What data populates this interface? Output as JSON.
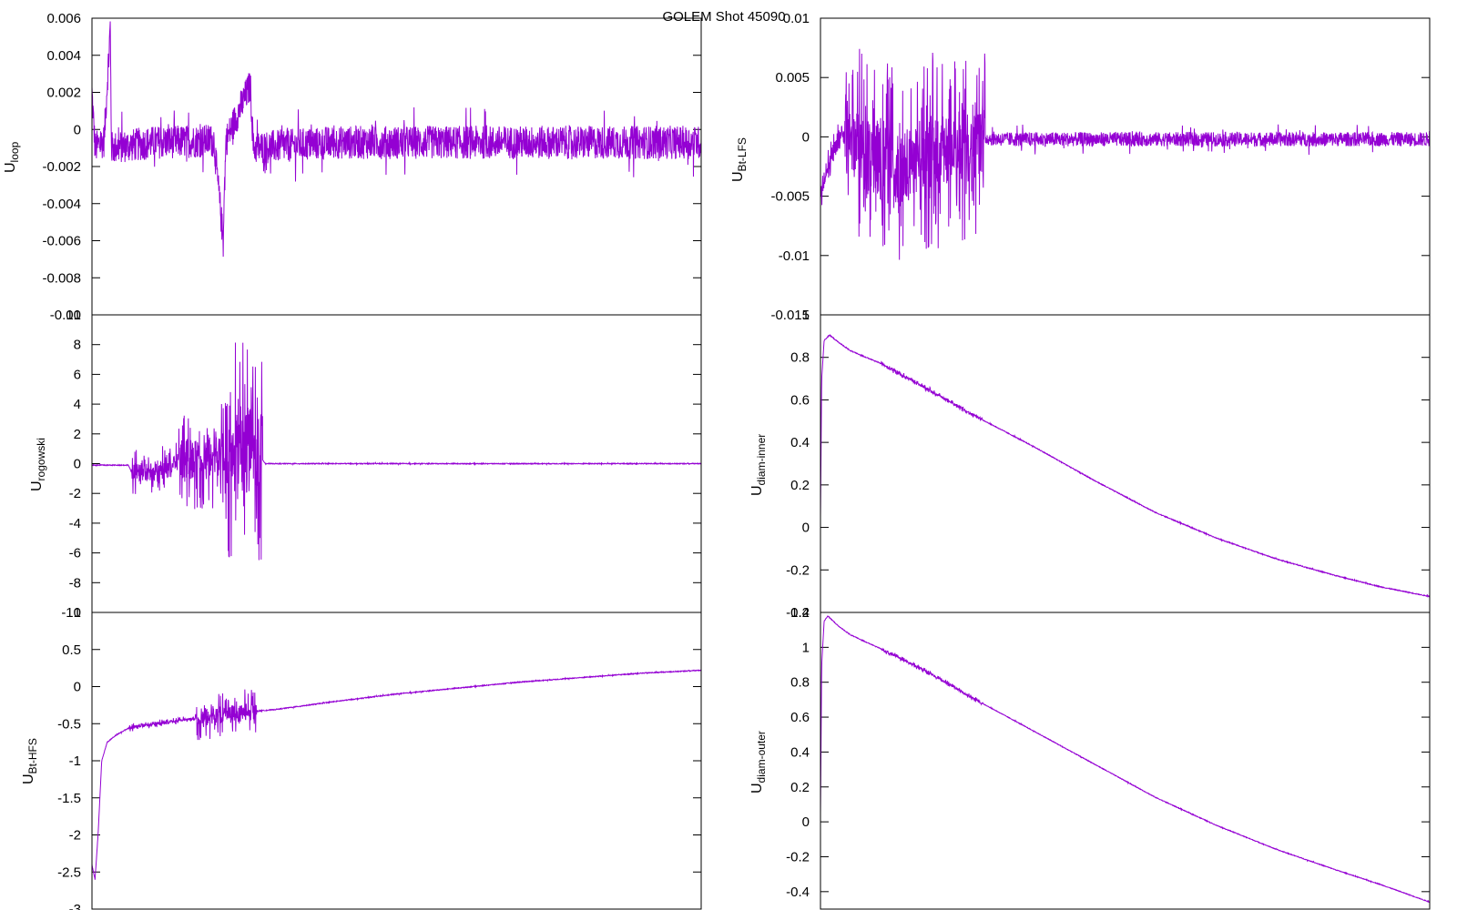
{
  "title": "GOLEM Shot 45090",
  "colors": {
    "trace": "#9400d3",
    "axis": "#000000",
    "background": "#ffffff"
  },
  "chart_data": [
    {
      "type": "line",
      "id": "uloop",
      "ylabel": "U",
      "ylabel_sub": "loop",
      "ylim": [
        -0.01,
        0.006
      ],
      "yticks": [
        0.006,
        0.004,
        0.002,
        0,
        -0.002,
        -0.004,
        -0.006,
        -0.008,
        -0.01
      ],
      "ytick_labels": [
        "0.006",
        "0.004",
        "0.002",
        "0",
        "-0.002",
        "-0.004",
        "-0.006",
        "-0.008",
        "-0.01"
      ],
      "x_range": [
        0,
        1
      ],
      "series": [
        {
          "points": [
            [
              0,
              0.002
            ],
            [
              0.005,
              -0.001
            ],
            [
              0.02,
              -0.0006
            ],
            [
              0.03,
              0.0055
            ],
            [
              0.032,
              -0.001
            ],
            [
              0.1,
              -0.0007
            ],
            [
              0.2,
              -0.0006
            ],
            [
              0.215,
              -0.0058
            ],
            [
              0.22,
              -0.0006
            ],
            [
              0.26,
              0.0024
            ],
            [
              0.265,
              -0.001
            ],
            [
              0.4,
              -0.0007
            ],
            [
              0.6,
              -0.0007
            ],
            [
              0.8,
              -0.0007
            ],
            [
              1.0,
              -0.0007
            ]
          ],
          "noise": 0.0009
        }
      ]
    },
    {
      "type": "line",
      "id": "ubt-lfs",
      "ylabel": "U",
      "ylabel_sub": "Bt-LFS",
      "ylim": [
        -0.015,
        0.01
      ],
      "yticks": [
        0.01,
        0.005,
        0,
        -0.005,
        -0.01,
        -0.015
      ],
      "ytick_labels": [
        "0.01",
        "0.005",
        "0",
        "-0.005",
        "-0.01",
        "-0.015"
      ],
      "x_range": [
        0,
        1
      ],
      "series": [
        {
          "points": [
            [
              0,
              -0.0045
            ],
            [
              0.02,
              -0.0015
            ],
            [
              0.035,
              0.0005
            ],
            [
              0.05,
              0.0001
            ],
            [
              0.07,
              -0.001
            ],
            [
              0.1,
              -0.002
            ],
            [
              0.13,
              -0.0025
            ],
            [
              0.16,
              -0.002
            ],
            [
              0.18,
              -0.0015
            ],
            [
              0.27,
              -0.0001
            ],
            [
              0.3,
              -0.0002
            ],
            [
              0.5,
              -0.0002
            ],
            [
              0.7,
              -0.0002
            ],
            [
              1.0,
              -0.0002
            ]
          ],
          "bursts": [
            {
              "x0": 0.04,
              "x1": 0.27,
              "amp": 0.008
            },
            {
              "x0": 0.0,
              "x1": 0.04,
              "amp": 0.0012
            }
          ],
          "noise": 0.0006
        }
      ]
    },
    {
      "type": "line",
      "id": "urogowski",
      "ylabel": "U",
      "ylabel_sub": "rogowski",
      "ylim": [
        -10,
        10
      ],
      "yticks": [
        10,
        8,
        6,
        4,
        2,
        0,
        -2,
        -4,
        -6,
        -8,
        -10
      ],
      "ytick_labels": [
        "10",
        "8",
        "6",
        "4",
        "2",
        "0",
        "-2",
        "-4",
        "-6",
        "-8",
        "-10"
      ],
      "x_range": [
        0,
        1
      ],
      "series": [
        {
          "points": [
            [
              0,
              -0.1
            ],
            [
              0.06,
              -0.1
            ],
            [
              0.065,
              -0.6
            ],
            [
              0.1,
              -0.5
            ],
            [
              0.15,
              0.3
            ],
            [
              0.2,
              0.5
            ],
            [
              0.25,
              1.0
            ],
            [
              0.27,
              0.8
            ],
            [
              0.285,
              0.0
            ],
            [
              0.3,
              0.0
            ],
            [
              0.5,
              0.0
            ],
            [
              0.8,
              0.0
            ],
            [
              1.0,
              0.0
            ]
          ],
          "bursts": [
            {
              "x0": 0.065,
              "x1": 0.14,
              "amp": 1.5
            },
            {
              "x0": 0.14,
              "x1": 0.22,
              "amp": 3.5
            },
            {
              "x0": 0.22,
              "x1": 0.28,
              "amp": 7.5
            }
          ],
          "noise": 0.03
        }
      ]
    },
    {
      "type": "line",
      "id": "udiam-inner",
      "ylabel": "U",
      "ylabel_sub": "diam-inner",
      "ylim": [
        -0.4,
        1.0
      ],
      "yticks": [
        1.0,
        0.8,
        0.6,
        0.4,
        0.2,
        0,
        -0.2,
        -0.4
      ],
      "ytick_labels": [
        "1",
        "0.8",
        "0.6",
        "0.4",
        "0.2",
        "0",
        "-0.2",
        "-0.4"
      ],
      "x_range": [
        0,
        1
      ],
      "series": [
        {
          "points": [
            [
              0,
              0.05
            ],
            [
              0.002,
              0.7
            ],
            [
              0.006,
              0.88
            ],
            [
              0.015,
              0.905
            ],
            [
              0.03,
              0.87
            ],
            [
              0.05,
              0.83
            ],
            [
              0.1,
              0.77
            ],
            [
              0.17,
              0.66
            ],
            [
              0.26,
              0.515
            ],
            [
              0.35,
              0.38
            ],
            [
              0.45,
              0.22
            ],
            [
              0.55,
              0.07
            ],
            [
              0.65,
              -0.05
            ],
            [
              0.75,
              -0.15
            ],
            [
              0.85,
              -0.23
            ],
            [
              0.92,
              -0.28
            ],
            [
              1.0,
              -0.325
            ]
          ],
          "bursts": [
            {
              "x0": 0.1,
              "x1": 0.265,
              "amp": 0.012
            }
          ],
          "noise": 0.002
        }
      ]
    },
    {
      "type": "line",
      "id": "ubt-hfs",
      "ylabel": "U",
      "ylabel_sub": "Bt-HFS",
      "ylim": [
        -3.0,
        1.0
      ],
      "yticks": [
        1.0,
        0.5,
        0,
        -0.5,
        -1,
        -1.5,
        -2,
        -2.5,
        -3
      ],
      "ytick_labels": [
        "1",
        "0.5",
        "0",
        "-0.5",
        "-1",
        "-1.5",
        "-2",
        "-2.5",
        "-3"
      ],
      "x_range": [
        0,
        1
      ],
      "series": [
        {
          "points": [
            [
              0,
              -2.4
            ],
            [
              0.005,
              -2.6
            ],
            [
              0.01,
              -2.0
            ],
            [
              0.016,
              -1.0
            ],
            [
              0.025,
              -0.75
            ],
            [
              0.04,
              -0.65
            ],
            [
              0.06,
              -0.56
            ],
            [
              0.1,
              -0.5
            ],
            [
              0.15,
              -0.45
            ],
            [
              0.2,
              -0.4
            ],
            [
              0.25,
              -0.35
            ],
            [
              0.27,
              -0.33
            ],
            [
              0.3,
              -0.31
            ],
            [
              0.4,
              -0.2
            ],
            [
              0.5,
              -0.1
            ],
            [
              0.6,
              -0.02
            ],
            [
              0.7,
              0.06
            ],
            [
              0.8,
              0.12
            ],
            [
              0.9,
              0.18
            ],
            [
              1.0,
              0.22
            ]
          ],
          "bursts": [
            {
              "x0": 0.06,
              "x1": 0.17,
              "amp": 0.05
            },
            {
              "x0": 0.17,
              "x1": 0.27,
              "amp": 0.3
            }
          ],
          "noise": 0.006
        }
      ]
    },
    {
      "type": "line",
      "id": "udiam-outer",
      "ylabel": "U",
      "ylabel_sub": "diam-outer",
      "ylim": [
        -0.5,
        1.2
      ],
      "yticks": [
        1.2,
        1.0,
        0.8,
        0.6,
        0.4,
        0.2,
        0,
        -0.2,
        -0.4
      ],
      "ytick_labels": [
        "1.2",
        "1",
        "0.8",
        "0.6",
        "0.4",
        "0.2",
        "0",
        "-0.2",
        "-0.4"
      ],
      "x_range": [
        0,
        1
      ],
      "series": [
        {
          "points": [
            [
              0,
              0.05
            ],
            [
              0.002,
              0.9
            ],
            [
              0.006,
              1.15
            ],
            [
              0.012,
              1.18
            ],
            [
              0.03,
              1.12
            ],
            [
              0.05,
              1.07
            ],
            [
              0.1,
              0.99
            ],
            [
              0.17,
              0.87
            ],
            [
              0.26,
              0.69
            ],
            [
              0.35,
              0.52
            ],
            [
              0.45,
              0.33
            ],
            [
              0.55,
              0.14
            ],
            [
              0.65,
              -0.02
            ],
            [
              0.75,
              -0.16
            ],
            [
              0.85,
              -0.28
            ],
            [
              0.92,
              -0.36
            ],
            [
              1.0,
              -0.46
            ]
          ],
          "bursts": [
            {
              "x0": 0.1,
              "x1": 0.265,
              "amp": 0.015
            }
          ],
          "noise": 0.002
        }
      ]
    }
  ]
}
